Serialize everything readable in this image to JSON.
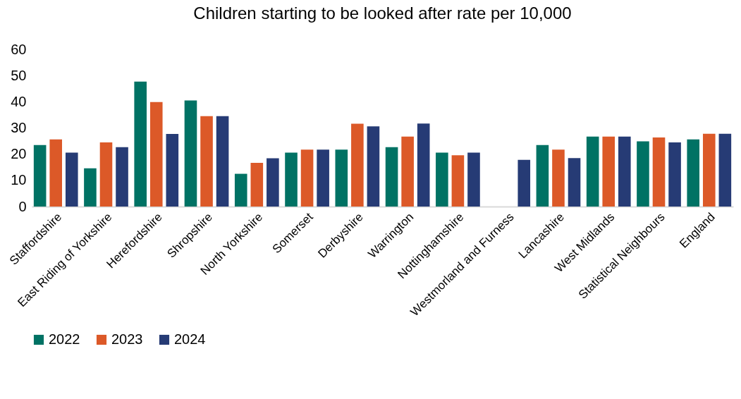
{
  "chart_data": {
    "type": "bar",
    "title": "Children starting to be looked after rate per 10,000",
    "categories": [
      "Staffordshire",
      "East Riding of Yorkshire",
      "Herefordshire",
      "Shropshire",
      "North Yorkshire",
      "Somerset",
      "Derbyshire",
      "Warrington",
      "Nottinghamshire",
      "Westmorland and Furness",
      "Lancashire",
      "West Midlands",
      "Statistical Neighbours",
      "England"
    ],
    "series": [
      {
        "name": "2022",
        "color": "#007264",
        "values": [
          23.5,
          14.6,
          47.7,
          40.5,
          12.5,
          20.6,
          21.7,
          22.7,
          20.6,
          null,
          23.5,
          26.7,
          24.9,
          25.6
        ]
      },
      {
        "name": "2023",
        "color": "#dc5928",
        "values": [
          25.6,
          24.5,
          39.9,
          34.5,
          16.7,
          21.7,
          31.6,
          26.7,
          19.6,
          null,
          21.7,
          26.7,
          26.4,
          27.8
        ]
      },
      {
        "name": "2024",
        "color": "#263b75",
        "values": [
          20.6,
          22.7,
          27.7,
          34.5,
          18.4,
          21.7,
          30.6,
          31.7,
          20.6,
          17.8,
          18.5,
          26.7,
          24.5,
          27.8
        ]
      }
    ],
    "ylim": [
      0,
      60
    ],
    "yticks": [
      0,
      10,
      20,
      30,
      40,
      50,
      60
    ],
    "grid": false,
    "legend": "bottom"
  }
}
